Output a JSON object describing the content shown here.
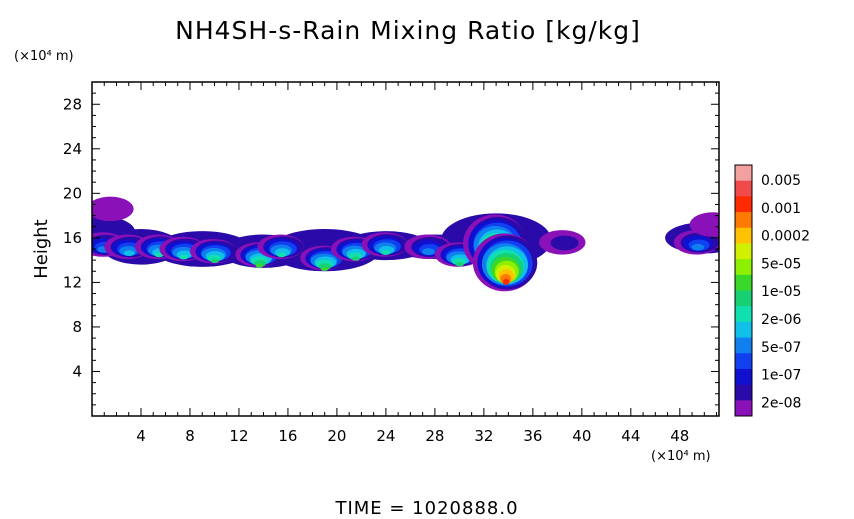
{
  "chart_data": {
    "type": "heatmap",
    "title": "NH4SH-s-Rain Mixing Ratio [kg/kg]",
    "ylabel": "Height",
    "xunit": "(×10⁴ m)",
    "yunit": "(×10⁴ m)",
    "x_ticks": [
      "4",
      "8",
      "12",
      "16",
      "20",
      "24",
      "28",
      "32",
      "36",
      "40",
      "44",
      "48"
    ],
    "y_ticks": [
      "4",
      "8",
      "12",
      "16",
      "20",
      "24",
      "28"
    ],
    "xlim": [
      0,
      51.2
    ],
    "ylim": [
      0,
      30
    ],
    "colorbar": {
      "labels": [
        "0.005",
        "0.001",
        "0.0002",
        "5e-05",
        "1e-05",
        "2e-06",
        "5e-07",
        "1e-07",
        "2e-08"
      ],
      "colors": [
        "#f3a0a0",
        "#f04a4a",
        "#ff2a00",
        "#ff7a00",
        "#ffc200",
        "#d0f000",
        "#8ef000",
        "#3ad82a",
        "#18d074",
        "#10e0b0",
        "#10c0e8",
        "#1080f0",
        "#1040f0",
        "#1010d0",
        "#2a0aa8",
        "#8a10b8"
      ]
    },
    "blobs": [
      {
        "x": 1.6,
        "y": 18.6,
        "level": 0
      },
      {
        "x": 1.0,
        "y": 15.4,
        "level": 4
      },
      {
        "x": 3.0,
        "y": 15.2,
        "level": 5
      },
      {
        "x": 5.5,
        "y": 15.2,
        "level": 6
      },
      {
        "x": 7.5,
        "y": 15.0,
        "level": 6
      },
      {
        "x": 10.0,
        "y": 14.8,
        "level": 7
      },
      {
        "x": 13.7,
        "y": 14.5,
        "level": 8
      },
      {
        "x": 15.5,
        "y": 15.2,
        "level": 6
      },
      {
        "x": 19.0,
        "y": 14.2,
        "level": 8
      },
      {
        "x": 21.5,
        "y": 15.0,
        "level": 7
      },
      {
        "x": 24.0,
        "y": 15.4,
        "level": 6
      },
      {
        "x": 27.5,
        "y": 15.2,
        "level": 4
      },
      {
        "x": 30.0,
        "y": 14.5,
        "level": 7
      },
      {
        "x": 33.0,
        "y": 15.5,
        "level": 11
      },
      {
        "x": 33.8,
        "y": 13.8,
        "level": 13
      },
      {
        "x": 38.5,
        "y": 15.6,
        "level": 1
      },
      {
        "x": 49.5,
        "y": 15.6,
        "level": 4
      },
      {
        "x": 50.8,
        "y": 17.2,
        "level": 0
      }
    ]
  },
  "time_label": "TIME  =  1020888.0"
}
